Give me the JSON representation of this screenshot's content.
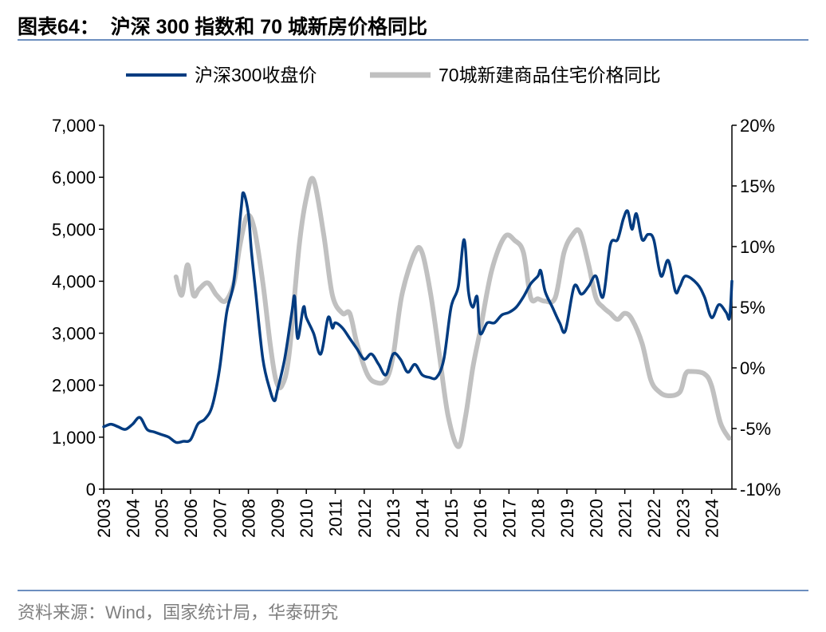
{
  "title": "图表64：  沪深 300 指数和 70 城新房价格同比",
  "source": "资料来源：Wind，国家统计局，华泰研究",
  "chart_data": {
    "type": "line",
    "title": "",
    "x_range": [
      2003,
      2024.7
    ],
    "x_ticks": [
      "2003",
      "2004",
      "2005",
      "2006",
      "2007",
      "2008",
      "2009",
      "2010",
      "2011",
      "2012",
      "2013",
      "2014",
      "2015",
      "2016",
      "2017",
      "2018",
      "2019",
      "2020",
      "2021",
      "2022",
      "2023",
      "2024"
    ],
    "y_left": {
      "range": [
        0,
        7000
      ],
      "ticks": [
        "0",
        "1,000",
        "2,000",
        "3,000",
        "4,000",
        "5,000",
        "6,000",
        "7,000"
      ]
    },
    "y_right": {
      "range": [
        -10,
        20
      ],
      "ticks": [
        "-10%",
        "-5%",
        "0%",
        "5%",
        "10%",
        "15%",
        "20%"
      ]
    },
    "grid": false,
    "legend_position": "top",
    "series": [
      {
        "name": "沪深300收盘价",
        "axis": "left",
        "color": "#003b80",
        "x": [
          2003.0,
          2003.25,
          2003.5,
          2003.75,
          2004.0,
          2004.25,
          2004.5,
          2004.75,
          2005.0,
          2005.25,
          2005.5,
          2005.75,
          2006.0,
          2006.25,
          2006.5,
          2006.75,
          2007.0,
          2007.25,
          2007.5,
          2007.75,
          2007.83,
          2008.0,
          2008.1,
          2008.25,
          2008.5,
          2008.75,
          2008.9,
          2009.0,
          2009.25,
          2009.5,
          2009.6,
          2009.7,
          2009.9,
          2010.0,
          2010.25,
          2010.5,
          2010.75,
          2010.9,
          2011.0,
          2011.25,
          2011.5,
          2011.75,
          2012.0,
          2012.25,
          2012.5,
          2012.75,
          2013.0,
          2013.25,
          2013.5,
          2013.75,
          2014.0,
          2014.25,
          2014.5,
          2014.75,
          2015.0,
          2015.25,
          2015.45,
          2015.6,
          2015.75,
          2015.9,
          2016.0,
          2016.25,
          2016.5,
          2016.75,
          2017.0,
          2017.25,
          2017.5,
          2017.75,
          2018.0,
          2018.1,
          2018.25,
          2018.5,
          2018.75,
          2018.95,
          2019.25,
          2019.5,
          2019.75,
          2020.0,
          2020.25,
          2020.5,
          2020.75,
          2020.95,
          2021.1,
          2021.25,
          2021.4,
          2021.6,
          2021.8,
          2022.0,
          2022.25,
          2022.5,
          2022.75,
          2022.9,
          2023.1,
          2023.5,
          2023.75,
          2024.0,
          2024.25,
          2024.5,
          2024.62,
          2024.7
        ],
        "values": [
          1200,
          1250,
          1200,
          1150,
          1250,
          1380,
          1150,
          1100,
          1050,
          1000,
          900,
          920,
          950,
          1250,
          1350,
          1600,
          2300,
          3400,
          4000,
          5400,
          5700,
          5300,
          4600,
          3800,
          2500,
          1900,
          1700,
          1900,
          2500,
          3400,
          3700,
          2900,
          3500,
          3300,
          3000,
          2600,
          3300,
          3100,
          3200,
          3100,
          2900,
          2700,
          2500,
          2600,
          2400,
          2200,
          2600,
          2500,
          2250,
          2400,
          2200,
          2150,
          2150,
          2500,
          3500,
          3900,
          4800,
          3800,
          3500,
          3700,
          3000,
          3200,
          3200,
          3350,
          3400,
          3500,
          3700,
          3950,
          4100,
          4200,
          3800,
          3500,
          3200,
          3050,
          3900,
          3750,
          3900,
          4100,
          3700,
          4700,
          4800,
          5200,
          5350,
          5000,
          5300,
          4800,
          4900,
          4800,
          4100,
          4400,
          3800,
          3900,
          4100,
          3950,
          3700,
          3300,
          3550,
          3400,
          3300,
          4000
        ]
      },
      {
        "name": "70城新建商品住宅价格同比",
        "axis": "right",
        "color": "#c0c0c0",
        "x": [
          2005.5,
          2005.7,
          2005.9,
          2006.1,
          2006.3,
          2006.6,
          2006.9,
          2007.2,
          2007.5,
          2007.7,
          2007.95,
          2008.2,
          2008.5,
          2008.75,
          2008.95,
          2009.15,
          2009.4,
          2009.75,
          2010.0,
          2010.25,
          2010.6,
          2010.9,
          2011.25,
          2011.5,
          2011.75,
          2012.1,
          2012.4,
          2012.75,
          2013.0,
          2013.3,
          2013.75,
          2014.0,
          2014.3,
          2014.6,
          2014.9,
          2015.25,
          2015.5,
          2015.75,
          2016.0,
          2016.4,
          2016.85,
          2017.2,
          2017.5,
          2017.75,
          2018.0,
          2018.25,
          2018.6,
          2018.9,
          2019.2,
          2019.45,
          2019.75,
          2020.0,
          2020.25,
          2020.5,
          2020.75,
          2021.0,
          2021.25,
          2021.6,
          2021.9,
          2022.2,
          2022.5,
          2022.9,
          2023.1,
          2023.3,
          2023.75,
          2024.0,
          2024.3,
          2024.6
        ],
        "values": [
          7.5,
          6,
          8.5,
          6,
          6.5,
          7,
          6,
          5.5,
          7,
          10,
          12.5,
          11.5,
          7,
          2,
          -1,
          -1.5,
          1,
          10,
          14,
          15.5,
          11,
          6,
          4.5,
          4.5,
          2,
          -0.5,
          -1.2,
          -1,
          1,
          6,
          9.5,
          9.5,
          6,
          1,
          -4,
          -6.5,
          -4,
          0,
          3,
          8,
          10.8,
          10.5,
          9.5,
          5.8,
          5.7,
          5.5,
          5.8,
          9.5,
          11,
          11.2,
          8.5,
          5.8,
          5,
          4.5,
          4,
          4.5,
          4,
          2,
          -1,
          -2,
          -2.3,
          -2,
          -0.5,
          -0.3,
          -0.5,
          -1.5,
          -4.5,
          -5.8
        ]
      }
    ]
  }
}
